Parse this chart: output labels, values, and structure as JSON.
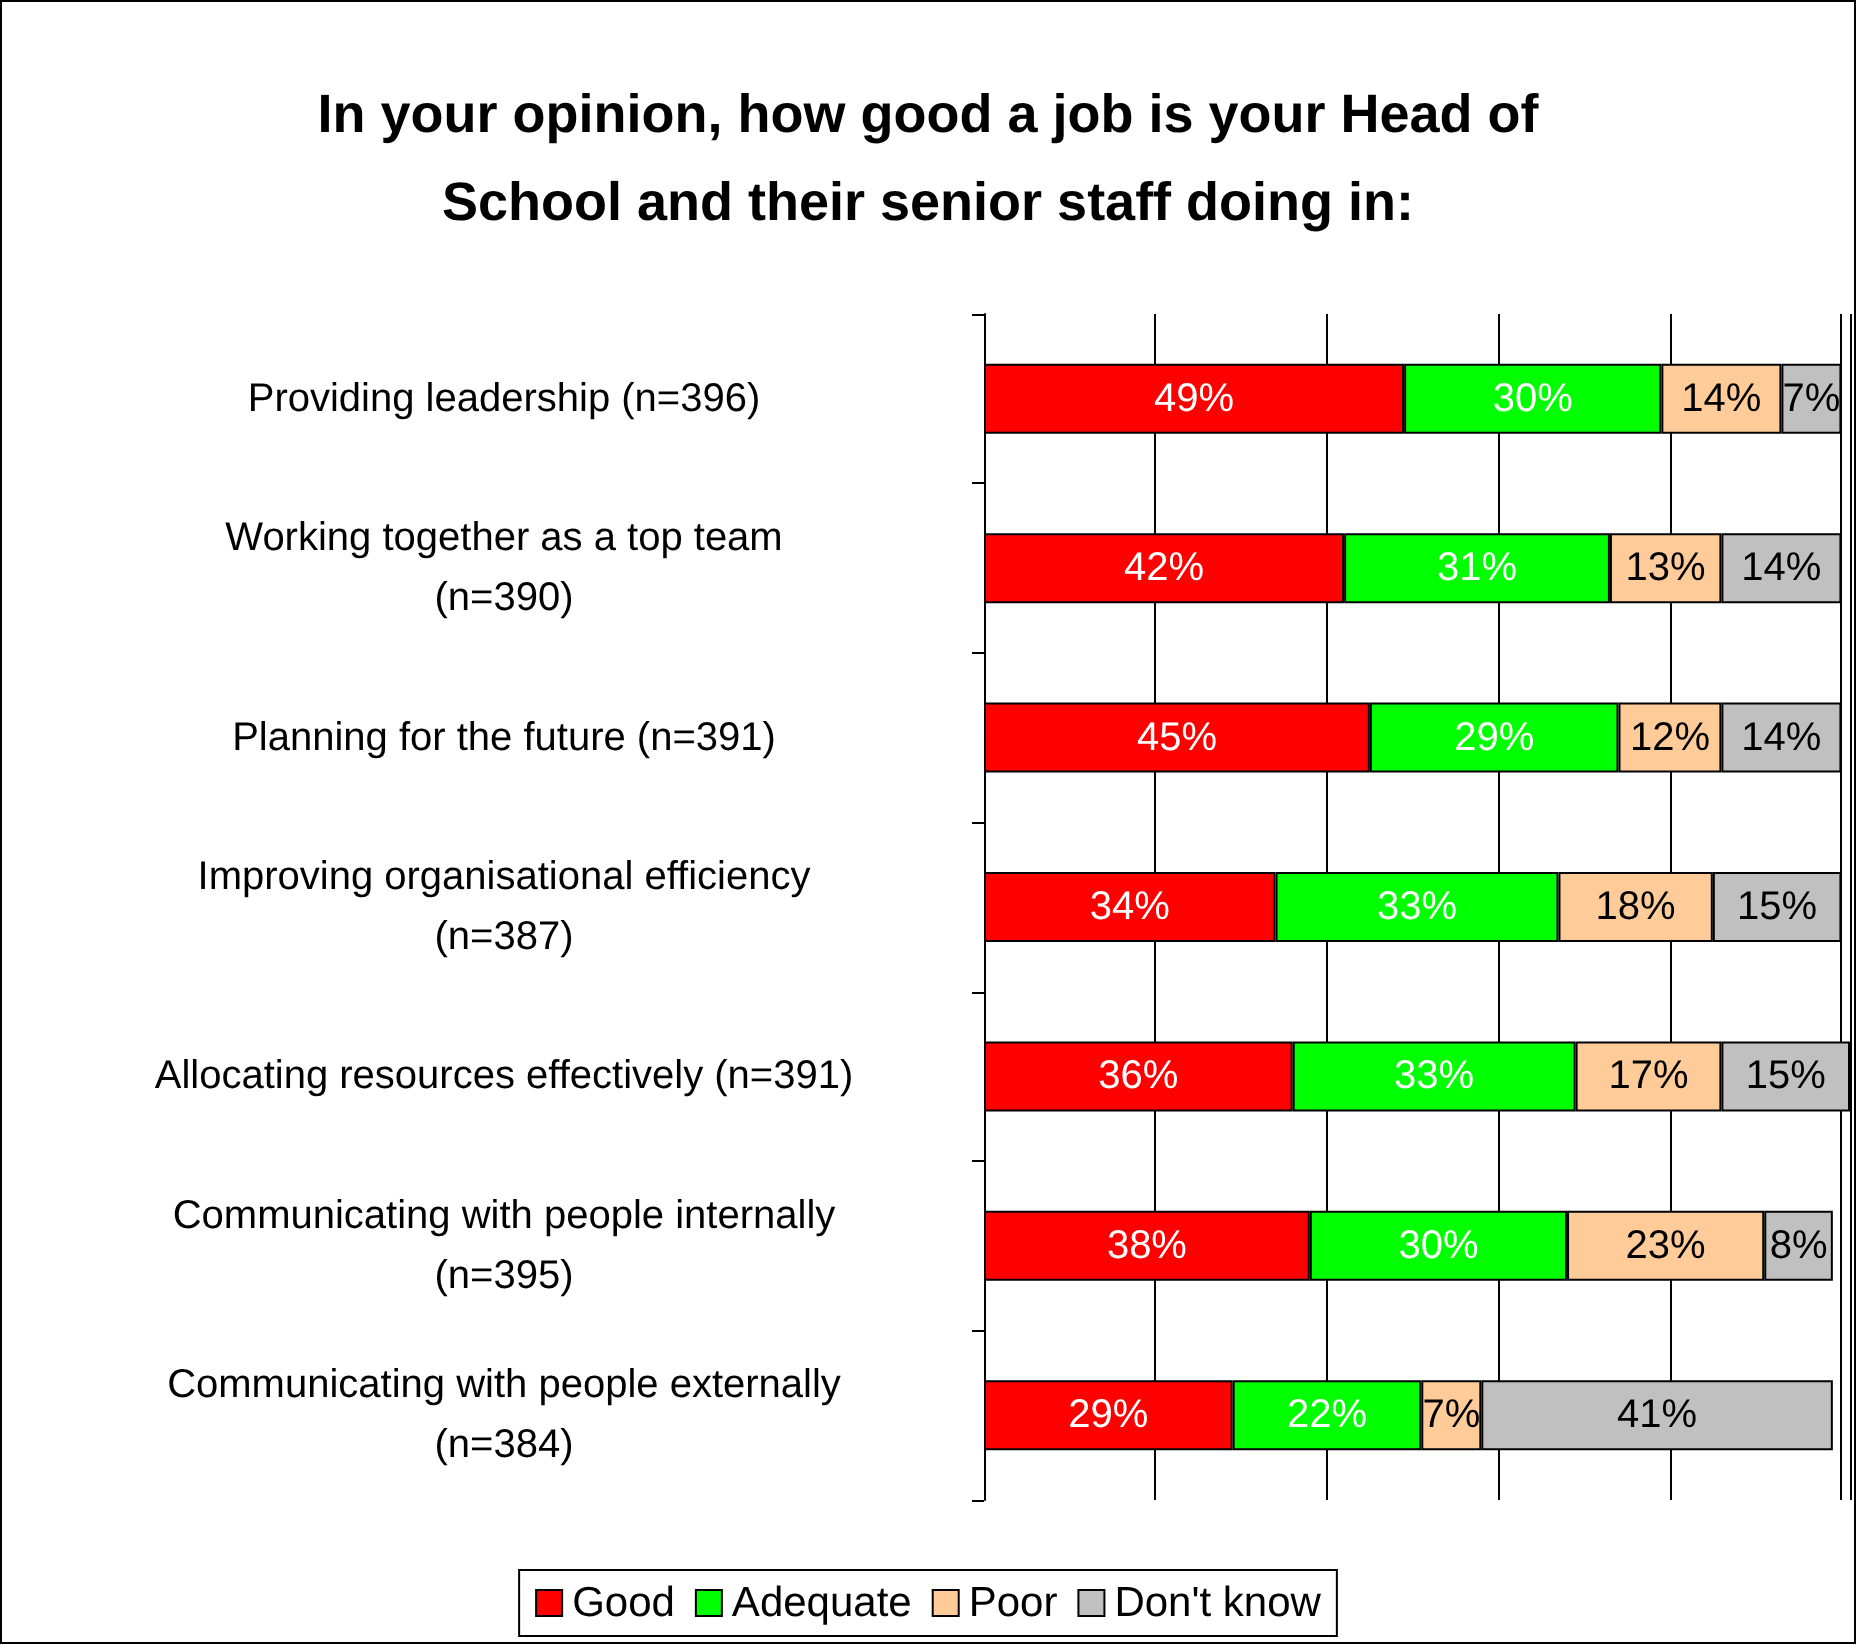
{
  "chart_data": {
    "type": "bar",
    "orientation": "horizontal",
    "stacked": true,
    "title": "In your opinion, how good a job is your Head of\nSchool and their senior staff doing in:",
    "categories": [
      "Providing leadership (n=396)",
      "Working together as a top team\n(n=390)",
      "Planning for the future (n=391)",
      "Improving organisational efficiency\n(n=387)",
      "Allocating resources effectively (n=391)",
      "Communicating with people internally\n(n=395)",
      "Communicating with people externally\n(n=384)"
    ],
    "series": [
      {
        "name": "Good",
        "color": "#ff0000",
        "values": [
          49,
          42,
          45,
          34,
          36,
          38,
          29
        ],
        "value_labels": [
          "49%",
          "42%",
          "45%",
          "34%",
          "36%",
          "38%",
          "29%"
        ]
      },
      {
        "name": "Adequate",
        "color": "#00ff00",
        "values": [
          30,
          31,
          29,
          33,
          33,
          30,
          22
        ],
        "value_labels": [
          "30%",
          "31%",
          "29%",
          "33%",
          "33%",
          "30%",
          "22%"
        ]
      },
      {
        "name": "Poor",
        "color": "#ffcc99",
        "values": [
          14,
          13,
          12,
          18,
          17,
          23,
          7
        ],
        "value_labels": [
          "14%",
          "13%",
          "12%",
          "18%",
          "17%",
          "23%",
          "7%"
        ]
      },
      {
        "name": "Don't know",
        "color": "#c0c0c0",
        "values": [
          7,
          14,
          14,
          15,
          15,
          8,
          41
        ],
        "value_labels": [
          "7%",
          "14%",
          "14%",
          "15%",
          "15%",
          "8%",
          "41%"
        ]
      }
    ],
    "grid": "x",
    "legend": "bottom",
    "tick_labels": "y"
  }
}
